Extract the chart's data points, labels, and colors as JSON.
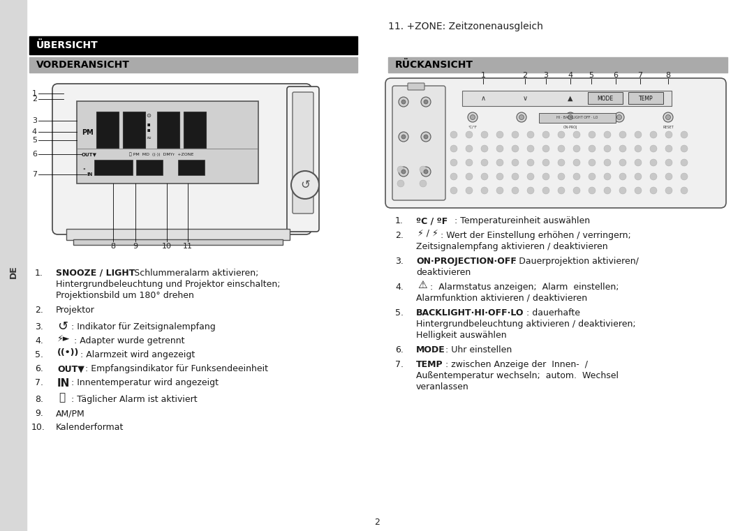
{
  "page_bg": "#ffffff",
  "left_sidebar_bg": "#d8d8d8",
  "sidebar_text": "DE",
  "ubersicht_bg": "#000000",
  "ubersicht_text": "ÜBERSICHT",
  "ubersicht_text_color": "#ffffff",
  "vorderansicht_bg": "#aaaaaa",
  "vorderansicht_text": "VORDERANSICHT",
  "vorderansicht_text_color": "#000000",
  "ruckansicht_bg": "#aaaaaa",
  "ruckansicht_text": "RÜCKANSICHT",
  "ruckansicht_text_color": "#000000",
  "zone_text": "11. +ZONE: Zeitzonenausgleich",
  "page_number": "2",
  "front_labels_left": [
    "1",
    "2",
    "3",
    "4",
    "5",
    "6",
    "7"
  ],
  "front_labels_bottom": [
    "8",
    "9",
    "10",
    "11"
  ],
  "back_labels_top": [
    "1",
    "2",
    "3",
    "4",
    "5",
    "6",
    "7",
    "8"
  ]
}
